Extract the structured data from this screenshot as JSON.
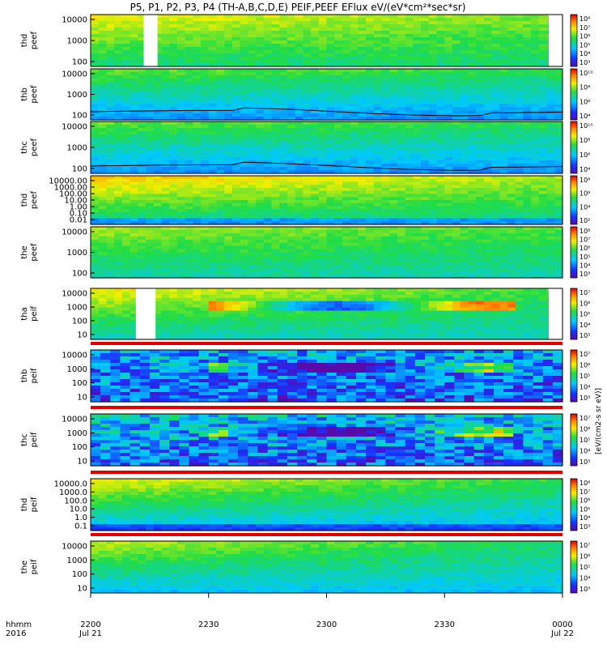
{
  "chart_data": {
    "type": "heatmap",
    "title": "P5, P1, P2, P3, P4 (TH-A,B,C,D,E) PEIF,PEEF EFlux eV/(eV*cm²*sec*sr)",
    "x_axis": {
      "label_line1": "hhmm",
      "label_line2": "2016",
      "range_hhmm": [
        "2200",
        "0000"
      ],
      "ticks": [
        {
          "t": 0,
          "label": "2200",
          "sub": "Jul 21"
        },
        {
          "t": 30,
          "label": "2230",
          "sub": ""
        },
        {
          "t": 60,
          "label": "2300",
          "sub": ""
        },
        {
          "t": 90,
          "label": "2330",
          "sub": ""
        },
        {
          "t": 120,
          "label": "0000",
          "sub": "Jul 22"
        }
      ]
    },
    "colorbar_unit_label": "[eV/(cm2-s sr eV)]",
    "panels": [
      {
        "ylabel": [
          "thd",
          "peef"
        ],
        "ytick_labels": [
          "10000",
          "1000",
          "100"
        ],
        "cbar_labels": [
          "10⁸",
          "10⁷",
          "10⁶",
          "10⁵",
          "10⁴",
          "10³"
        ],
        "gaps": [
          [
            13.5,
            17.0
          ],
          [
            116.5,
            120
          ]
        ]
      },
      {
        "ylabel": [
          "thb",
          "peef"
        ],
        "ytick_labels": [
          "10000",
          "1000",
          "100"
        ],
        "cbar_labels": [
          "10¹⁰",
          "10⁸",
          "10⁶",
          "10⁴"
        ]
      },
      {
        "ylabel": [
          "thc",
          "peef"
        ],
        "ytick_labels": [
          "10000",
          "1000",
          "100"
        ],
        "cbar_labels": [
          "10¹⁰",
          "10⁸",
          "10⁶",
          "10⁴"
        ]
      },
      {
        "ylabel": [
          "thd",
          "peef"
        ],
        "ytick_labels": [
          "10000.00",
          "1000.00",
          "100.00",
          "10.00",
          "1.00",
          "0.10",
          "0.01"
        ],
        "cbar_labels": [
          "10⁸",
          "10⁶",
          "10⁴",
          "10²"
        ]
      },
      {
        "ylabel": [
          "the",
          "peef"
        ],
        "ytick_labels": [
          "10000",
          "1000",
          "100"
        ],
        "cbar_labels": [
          "10⁸",
          "10⁷",
          "10⁶",
          "10⁵",
          "10⁴",
          "10³"
        ]
      },
      {
        "ylabel": [
          "tha",
          "peif"
        ],
        "ytick_labels": [
          "10000",
          "1000",
          "100",
          "10"
        ],
        "cbar_labels": [
          "10⁷",
          "10⁶",
          "10⁵",
          "10⁴",
          "10³"
        ],
        "gaps": [
          [
            11.5,
            16.5
          ],
          [
            116.5,
            120
          ]
        ]
      },
      {
        "ylabel": [
          "thb",
          "peif"
        ],
        "ytick_labels": [
          "10000",
          "1000",
          "100",
          "10"
        ],
        "cbar_labels": [
          "10⁷",
          "10⁶",
          "10⁵",
          "10⁴",
          "10³"
        ]
      },
      {
        "ylabel": [
          "thc",
          "peif"
        ],
        "ytick_labels": [
          "10000",
          "1000",
          "100",
          "10"
        ],
        "cbar_labels": [
          "10⁷",
          "10⁶",
          "10⁵",
          "10⁴",
          "10³"
        ]
      },
      {
        "ylabel": [
          "thd",
          "peif"
        ],
        "ytick_labels": [
          "10000.0",
          "1000.0",
          "100.0",
          "10.0",
          "1.0",
          "0.1"
        ],
        "cbar_labels": [
          "10⁸",
          "10⁷",
          "10⁶",
          "10⁵",
          "10⁴",
          "10³"
        ]
      },
      {
        "ylabel": [
          "the",
          "peif"
        ],
        "ytick_labels": [
          "10000",
          "1000",
          "100",
          "10"
        ],
        "cbar_labels": [
          "10⁷",
          "10⁶",
          "10⁵",
          "10⁴",
          "10³"
        ]
      }
    ]
  }
}
